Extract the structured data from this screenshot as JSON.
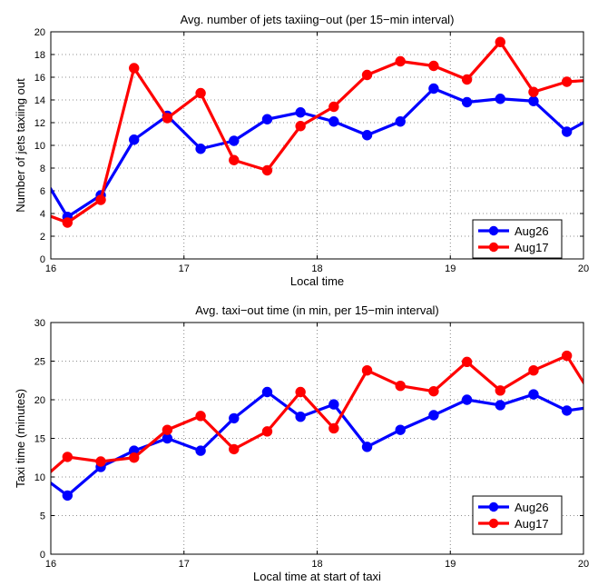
{
  "colors": {
    "Aug26": "#0000ff",
    "Aug17": "#ff0000",
    "grid": "#6b6b6b"
  },
  "chart_data": [
    {
      "type": "line",
      "title": "Avg. number of jets taxiing−out (per 15−min interval)",
      "xlabel": "Local time",
      "ylabel": "Number of jets taxiing out",
      "xlim": [
        16,
        20
      ],
      "ylim": [
        0,
        20
      ],
      "xticks": [
        "16",
        "17",
        "18",
        "19",
        "20"
      ],
      "yticks": [
        "0",
        "2",
        "4",
        "6",
        "8",
        "10",
        "12",
        "14",
        "16",
        "18",
        "20"
      ],
      "grid": true,
      "legend_position": "bottom-right",
      "x": [
        15.875,
        16.125,
        16.375,
        16.625,
        16.875,
        17.125,
        17.375,
        17.625,
        17.875,
        18.125,
        18.375,
        18.625,
        18.875,
        19.125,
        19.375,
        19.625,
        19.875,
        20.125
      ],
      "series": [
        {
          "name": "Aug26",
          "values": [
            8.6,
            3.7,
            5.6,
            10.5,
            12.6,
            9.7,
            10.4,
            12.3,
            12.9,
            12.1,
            10.9,
            12.1,
            15.0,
            13.8,
            14.1,
            13.9,
            11.2,
            12.8
          ]
        },
        {
          "name": "Aug17",
          "values": [
            4.3,
            3.2,
            5.2,
            16.8,
            12.4,
            14.6,
            8.7,
            7.8,
            11.7,
            13.4,
            16.2,
            17.4,
            17.0,
            15.8,
            19.1,
            14.7,
            15.6,
            15.8
          ]
        }
      ]
    },
    {
      "type": "line",
      "title": "Avg. taxi−out time (in min, per 15−min interval)",
      "xlabel": "Local time at start of taxi",
      "ylabel": "Taxi time (minutes)",
      "xlim": [
        16,
        20
      ],
      "ylim": [
        0,
        30
      ],
      "xticks": [
        "16",
        "17",
        "18",
        "19",
        "20"
      ],
      "yticks": [
        "0",
        "5",
        "10",
        "15",
        "20",
        "25",
        "30"
      ],
      "grid": true,
      "legend_position": "bottom-right",
      "x": [
        15.875,
        16.125,
        16.375,
        16.625,
        16.875,
        17.125,
        17.375,
        17.625,
        17.875,
        18.125,
        18.375,
        18.625,
        18.875,
        19.125,
        19.375,
        19.625,
        19.875,
        20.125
      ],
      "series": [
        {
          "name": "Aug26",
          "values": [
            10.8,
            7.6,
            11.3,
            13.4,
            15.0,
            13.4,
            17.6,
            21.0,
            17.8,
            19.4,
            13.9,
            16.1,
            18.0,
            20.0,
            19.3,
            20.7,
            18.6,
            19.2
          ]
        },
        {
          "name": "Aug17",
          "values": [
            8.8,
            12.6,
            12.0,
            12.5,
            16.1,
            17.9,
            13.6,
            15.9,
            21.0,
            16.3,
            23.8,
            21.8,
            21.1,
            24.9,
            21.2,
            23.8,
            25.7,
            18.8
          ]
        }
      ]
    }
  ]
}
